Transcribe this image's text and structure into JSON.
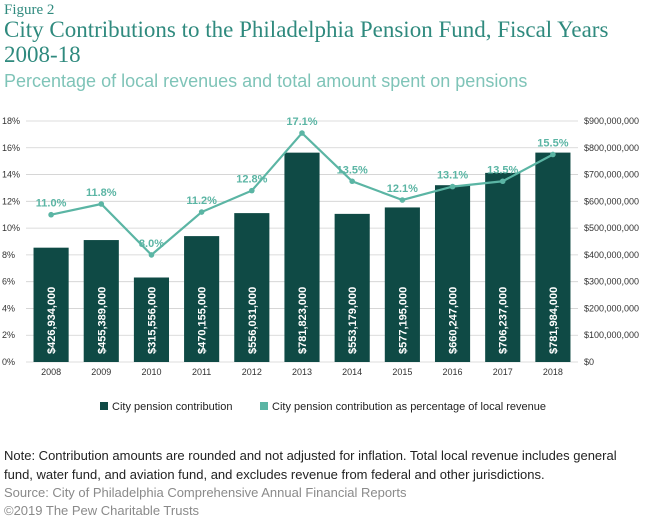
{
  "header": {
    "figure_label": "Figure 2",
    "title": "City Contributions to the Philadelphia Pension Fund, Fiscal Years 2008-18",
    "subtitle": "Percentage of local revenues and total amount spent on pensions"
  },
  "footer": {
    "note": "Note: Contribution amounts are rounded and not adjusted for inflation. Total local revenue includes general fund, water fund, and aviation fund, and excludes revenue from federal and other jurisdictions.",
    "source": "Source: City of Philadelphia Comprehensive Annual Financial Reports",
    "copyright": "©2019 The Pew Charitable Trusts"
  },
  "colors": {
    "bar": "#0f4a45",
    "line": "#5bb5a4",
    "title": "#2f8a7e",
    "subtitle": "#7fc4b8",
    "grid": "#d0d0d0"
  },
  "chart_data": {
    "type": "bar",
    "categories": [
      "2008",
      "2009",
      "2010",
      "2011",
      "2012",
      "2013",
      "2014",
      "2015",
      "2016",
      "2017",
      "2018"
    ],
    "series": [
      {
        "name": "City pension contribution",
        "type": "bar",
        "axis": "right",
        "values": [
          426934000,
          455389000,
          315556000,
          470155000,
          556031000,
          781823000,
          553179000,
          577195000,
          660247000,
          706237000,
          781984000
        ],
        "labels": [
          "$426,934,000",
          "$455,389,000",
          "$315,556,000",
          "$470,155,000",
          "$556,031,000",
          "$781,823,000",
          "$553,179,000",
          "$577,195,000",
          "$660,247,000",
          "$706,237,000",
          "$781,984,000"
        ]
      },
      {
        "name": "City pension contribution as percentage of local revenue",
        "type": "line",
        "axis": "left",
        "values": [
          11.0,
          11.8,
          8.0,
          11.2,
          12.8,
          17.1,
          13.5,
          12.1,
          13.1,
          13.5,
          15.5
        ],
        "labels": [
          "11.0%",
          "11.8%",
          "8.0%",
          "11.2%",
          "12.8%",
          "17.1%",
          "13.5%",
          "12.1%",
          "13.1%",
          "13.5%",
          "15.5%"
        ]
      }
    ],
    "left_axis": {
      "ylim": [
        0,
        18
      ],
      "ticks": [
        0,
        2,
        4,
        6,
        8,
        10,
        12,
        14,
        16,
        18
      ],
      "tick_labels": [
        "0%",
        "2%",
        "4%",
        "6%",
        "8%",
        "10%",
        "12%",
        "14%",
        "16%",
        "18%"
      ]
    },
    "right_axis": {
      "ylim": [
        0,
        900000000
      ],
      "ticks": [
        0,
        100000000,
        200000000,
        300000000,
        400000000,
        500000000,
        600000000,
        700000000,
        800000000,
        900000000
      ],
      "tick_labels": [
        "$0",
        "$100,000,000",
        "$200,000,000",
        "$300,000,000",
        "$400,000,000",
        "$500,000,000",
        "$600,000,000",
        "$700,000,000",
        "$800,000,000",
        "$900,000,000"
      ]
    },
    "grid": true,
    "legend_position": "bottom"
  }
}
